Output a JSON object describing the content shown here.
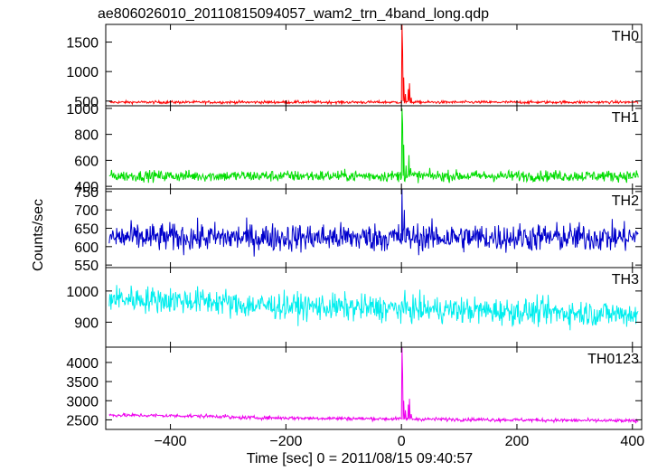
{
  "chart_data": {
    "type": "line",
    "title": "ae806026010_20110815094057_wam2_trn_4band_long.qdp",
    "ylabel": "Counts/sec",
    "xlabel": "Time [sec] 0 = 2011/08/15 09:40:57",
    "xlim": [
      -512,
      416
    ],
    "x_ticks": [
      -400,
      -200,
      0,
      200,
      400
    ],
    "x_tick_labels": [
      "−400",
      "−200",
      "0",
      "200",
      "400"
    ],
    "grid": false,
    "panels": [
      {
        "name": "TH0",
        "color": "#ff0000",
        "ylim": [
          420,
          1800
        ],
        "y_ticks": [
          500,
          1000,
          1500
        ],
        "baseline": 480,
        "noise": 30,
        "trend": 0,
        "features": [
          {
            "t": 1,
            "value": 1800
          },
          {
            "t": 2,
            "value": 1350
          },
          {
            "t": 4,
            "value": 900
          },
          {
            "t": 7,
            "value": 620
          },
          {
            "t": 12,
            "value": 700
          },
          {
            "t": 14,
            "value": 800
          },
          {
            "t": 17,
            "value": 560
          }
        ]
      },
      {
        "name": "TH1",
        "color": "#00dd00",
        "ylim": [
          380,
          1020
        ],
        "y_ticks": [
          400,
          600,
          800,
          1000
        ],
        "baseline": 480,
        "noise": 55,
        "trend": 0,
        "features": [
          {
            "t": 1,
            "value": 1000
          },
          {
            "t": 2,
            "value": 880
          },
          {
            "t": 4,
            "value": 720
          },
          {
            "t": 8,
            "value": 560
          },
          {
            "t": 13,
            "value": 640
          },
          {
            "t": 16,
            "value": 540
          }
        ]
      },
      {
        "name": "TH2",
        "color": "#0000cc",
        "ylim": [
          543,
          757
        ],
        "y_ticks": [
          550,
          600,
          650,
          700,
          750
        ],
        "baseline": 625,
        "noise": 50,
        "trend": 0,
        "features": [
          {
            "t": 1,
            "value": 757
          },
          {
            "t": 5,
            "value": 700
          }
        ]
      },
      {
        "name": "TH3",
        "color": "#00eeee",
        "ylim": [
          820,
          1075
        ],
        "y_ticks": [
          900,
          1000
        ],
        "baseline": 925,
        "noise": 55,
        "trend": 40,
        "features": []
      },
      {
        "name": "TH0123",
        "color": "#ee00ee",
        "ylim": [
          2250,
          4400
        ],
        "y_ticks": [
          2500,
          3000,
          3500,
          4000
        ],
        "baseline": 2470,
        "noise": 60,
        "trend": 120,
        "features": [
          {
            "t": 1,
            "value": 4400
          },
          {
            "t": 2,
            "value": 3700
          },
          {
            "t": 4,
            "value": 3000
          },
          {
            "t": 7,
            "value": 2750
          },
          {
            "t": 12,
            "value": 2900
          },
          {
            "t": 14,
            "value": 3050
          },
          {
            "t": 17,
            "value": 2650
          }
        ]
      }
    ]
  }
}
